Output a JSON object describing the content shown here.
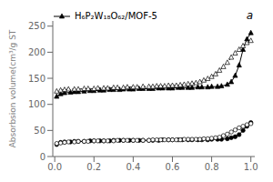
{
  "chart_data": {
    "type": "line",
    "ylabel": "Absorbsion volume(cm³/g ST",
    "annotations": [
      "a"
    ],
    "legend": "upper left",
    "grid": false,
    "xlim": [
      -0.01,
      1.02
    ],
    "ylim": [
      0,
      260
    ],
    "xticks": [
      {
        "value": 0,
        "label": "0.0"
      },
      0.2,
      0.4,
      0.6,
      0.8,
      {
        "value": 1,
        "label": "1.0"
      }
    ],
    "yticks": [
      0,
      50,
      100,
      150,
      200,
      250
    ],
    "series": [
      {
        "name": "H₆P₂W₁₈O₆₂/MOF-5",
        "color": "#000000",
        "marker": "triangle",
        "line_style": "solid",
        "x": [
          0.01,
          0.03,
          0.05,
          0.08,
          0.1,
          0.12,
          0.15,
          0.18,
          0.2,
          0.23,
          0.25,
          0.28,
          0.3,
          0.33,
          0.35,
          0.38,
          0.4,
          0.43,
          0.45,
          0.48,
          0.5,
          0.53,
          0.55,
          0.58,
          0.6,
          0.63,
          0.65,
          0.68,
          0.7,
          0.73,
          0.75,
          0.78,
          0.8,
          0.83,
          0.85,
          0.88,
          0.9,
          0.92,
          0.94,
          0.96,
          0.98,
          1.0
        ],
        "values": [
          115,
          120,
          122,
          123,
          124,
          124,
          125,
          126,
          126,
          127,
          127,
          128,
          128,
          128,
          129,
          129,
          129,
          130,
          130,
          130,
          130,
          131,
          131,
          131,
          131,
          132,
          132,
          132,
          132,
          133,
          133,
          133,
          134,
          134,
          135,
          138,
          143,
          155,
          175,
          205,
          225,
          237
        ]
      },
      {
        "color": "#000000",
        "marker": "triangle-open",
        "line_style": "dashed",
        "x": [
          1.0,
          0.98,
          0.96,
          0.94,
          0.92,
          0.9,
          0.88,
          0.86,
          0.84,
          0.82,
          0.8,
          0.78,
          0.76,
          0.74,
          0.72,
          0.7,
          0.68,
          0.66,
          0.64,
          0.62,
          0.6,
          0.58,
          0.56,
          0.54,
          0.52,
          0.5,
          0.48,
          0.45,
          0.42,
          0.4,
          0.37,
          0.35,
          0.32,
          0.3,
          0.27,
          0.25,
          0.22,
          0.2,
          0.17,
          0.15,
          0.12,
          0.1,
          0.07,
          0.05,
          0.03,
          0.01
        ],
        "values": [
          222,
          218,
          212,
          205,
          198,
          190,
          180,
          172,
          165,
          158,
          153,
          149,
          146,
          143,
          141,
          140,
          139,
          138,
          137,
          136,
          136,
          136,
          135,
          135,
          135,
          134,
          134,
          134,
          133,
          133,
          133,
          132,
          132,
          132,
          131,
          131,
          131,
          130,
          130,
          130,
          129,
          129,
          129,
          128,
          127,
          125
        ]
      },
      {
        "color": "#000000",
        "marker": "circle",
        "line_style": "solid",
        "x": [
          0.01,
          0.03,
          0.05,
          0.08,
          0.1,
          0.12,
          0.15,
          0.18,
          0.2,
          0.23,
          0.25,
          0.28,
          0.3,
          0.33,
          0.35,
          0.38,
          0.4,
          0.43,
          0.45,
          0.48,
          0.5,
          0.53,
          0.55,
          0.58,
          0.6,
          0.63,
          0.65,
          0.68,
          0.7,
          0.73,
          0.75,
          0.78,
          0.8,
          0.83,
          0.85,
          0.88,
          0.9,
          0.92,
          0.94,
          0.96,
          0.98,
          1.0
        ],
        "values": [
          23,
          27,
          28,
          28,
          29,
          29,
          29,
          30,
          30,
          30,
          30,
          30,
          31,
          31,
          31,
          31,
          31,
          31,
          31,
          31,
          31,
          31,
          32,
          32,
          32,
          32,
          32,
          32,
          32,
          32,
          32,
          32,
          33,
          33,
          33,
          34,
          36,
          38,
          42,
          50,
          58,
          65
        ]
      },
      {
        "color": "#000000",
        "marker": "circle-open",
        "line_style": "dashed",
        "x": [
          1.0,
          0.98,
          0.96,
          0.94,
          0.92,
          0.9,
          0.88,
          0.86,
          0.84,
          0.82,
          0.8,
          0.78,
          0.76,
          0.74,
          0.72,
          0.7,
          0.68,
          0.66,
          0.64,
          0.62,
          0.6,
          0.58,
          0.56,
          0.54,
          0.52,
          0.5,
          0.48,
          0.45,
          0.42,
          0.4,
          0.37,
          0.35,
          0.32,
          0.3,
          0.27,
          0.25,
          0.22,
          0.2,
          0.17,
          0.15,
          0.12,
          0.1,
          0.07,
          0.05,
          0.03,
          0.01
        ],
        "values": [
          63,
          61,
          58,
          55,
          51,
          47,
          43,
          40,
          37,
          36,
          35,
          34,
          34,
          33,
          33,
          33,
          33,
          33,
          32,
          32,
          32,
          32,
          32,
          32,
          32,
          32,
          31,
          31,
          31,
          31,
          31,
          31,
          31,
          30,
          30,
          30,
          30,
          30,
          29,
          29,
          29,
          28,
          28,
          27,
          26,
          25
        ]
      }
    ]
  }
}
